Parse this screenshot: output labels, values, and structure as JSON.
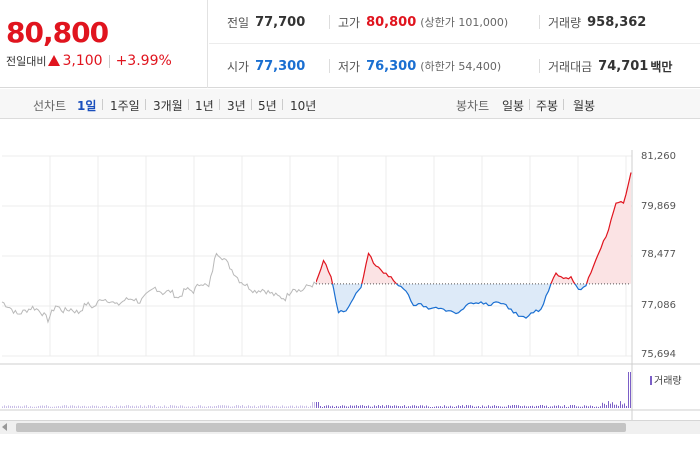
{
  "quote": {
    "price": "80,800",
    "change_label": "전일대비",
    "change_amount": "3,100",
    "change_pct": "+3.99%",
    "prev_close": {
      "label": "전일",
      "value": "77,700"
    },
    "high": {
      "label": "고가",
      "value": "80,800",
      "limit_label": "(상한가 101,000)"
    },
    "volume": {
      "label": "거래량",
      "value": "958,362"
    },
    "open": {
      "label": "시가",
      "value": "77,300"
    },
    "low": {
      "label": "저가",
      "value": "76,300",
      "limit_label": "(하한가 54,400)"
    },
    "trade_value": {
      "label": "거래대금",
      "value": "74,701",
      "unit": "백만"
    }
  },
  "period_bar": {
    "line_label": "선차트",
    "periods": [
      "1일",
      "1주일",
      "3개월",
      "1년",
      "3년",
      "5년",
      "10년"
    ],
    "active_period": "1일",
    "candle_label": "봉차트",
    "candles": [
      "일봉",
      "주봉",
      "월봉"
    ]
  },
  "colors": {
    "up": "#e0141e",
    "down": "#1a6fd1",
    "prev_day": "#b9b9b9",
    "volume": "#7b5fc7"
  },
  "chart_data": {
    "type": "line",
    "ylim": [
      75694,
      81260
    ],
    "y_ticks": [
      "81,260",
      "79,869",
      "78,477",
      "77,086",
      "75,694"
    ],
    "baseline": 77700,
    "volume_label": "거래량",
    "prev_day_series": [
      77200,
      77050,
      76850,
      76950,
      77050,
      76950,
      76700,
      77100,
      76950,
      77000,
      76900,
      77150,
      77050,
      77300,
      77250,
      77100,
      77250,
      77300,
      77200,
      77400,
      77600,
      77450,
      77500,
      77300,
      77550,
      77500,
      77750,
      77600,
      78600,
      78400,
      78100,
      77800,
      77650,
      77500,
      77550,
      77450,
      77350,
      77300,
      77600,
      77500,
      77650,
      77700
    ],
    "today_series": [
      77750,
      78350,
      77900,
      76900,
      76950,
      77300,
      77600,
      78550,
      78200,
      78000,
      77900,
      77650,
      77500,
      77100,
      77150,
      77000,
      77050,
      77000,
      76950,
      76900,
      77100,
      77150,
      77200,
      77100,
      77200,
      77150,
      77000,
      76800,
      76750,
      76900,
      77000,
      77500,
      78000,
      77850,
      77900,
      77550,
      77650,
      78200,
      78700,
      79200,
      79950,
      79950,
      80800
    ]
  }
}
